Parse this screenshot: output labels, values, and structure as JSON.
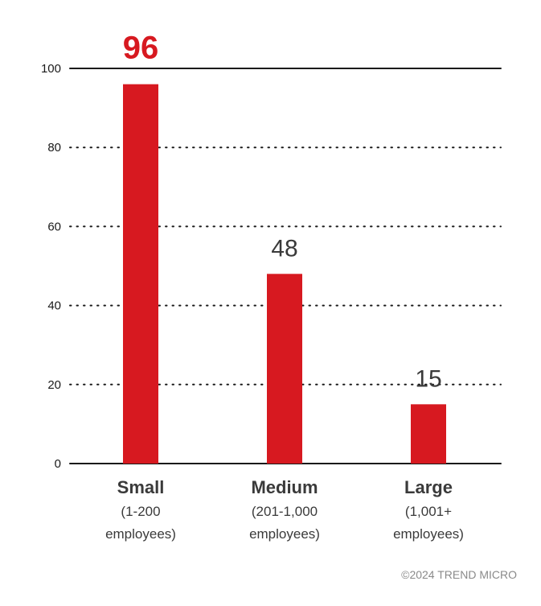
{
  "chart_data": {
    "type": "bar",
    "title": "",
    "xlabel": "",
    "ylabel": "",
    "ylim": [
      0,
      100
    ],
    "yticks": [
      0,
      20,
      40,
      60,
      80,
      100
    ],
    "grid": "dotted horizontal",
    "highlight_index": 0,
    "categories": [
      {
        "name": "Small",
        "sub": [
          "(1-200",
          "employees)"
        ]
      },
      {
        "name": "Medium",
        "sub": [
          "(201-1,000",
          "employees)"
        ]
      },
      {
        "name": "Large",
        "sub": [
          "(1,001+",
          "employees)"
        ]
      }
    ],
    "values": [
      96,
      48,
      15
    ],
    "bar_color": "#d71920",
    "highlight_color": "#d71920",
    "label_color": "#3a3a3a"
  },
  "footer": "©2024 TREND MICRO"
}
